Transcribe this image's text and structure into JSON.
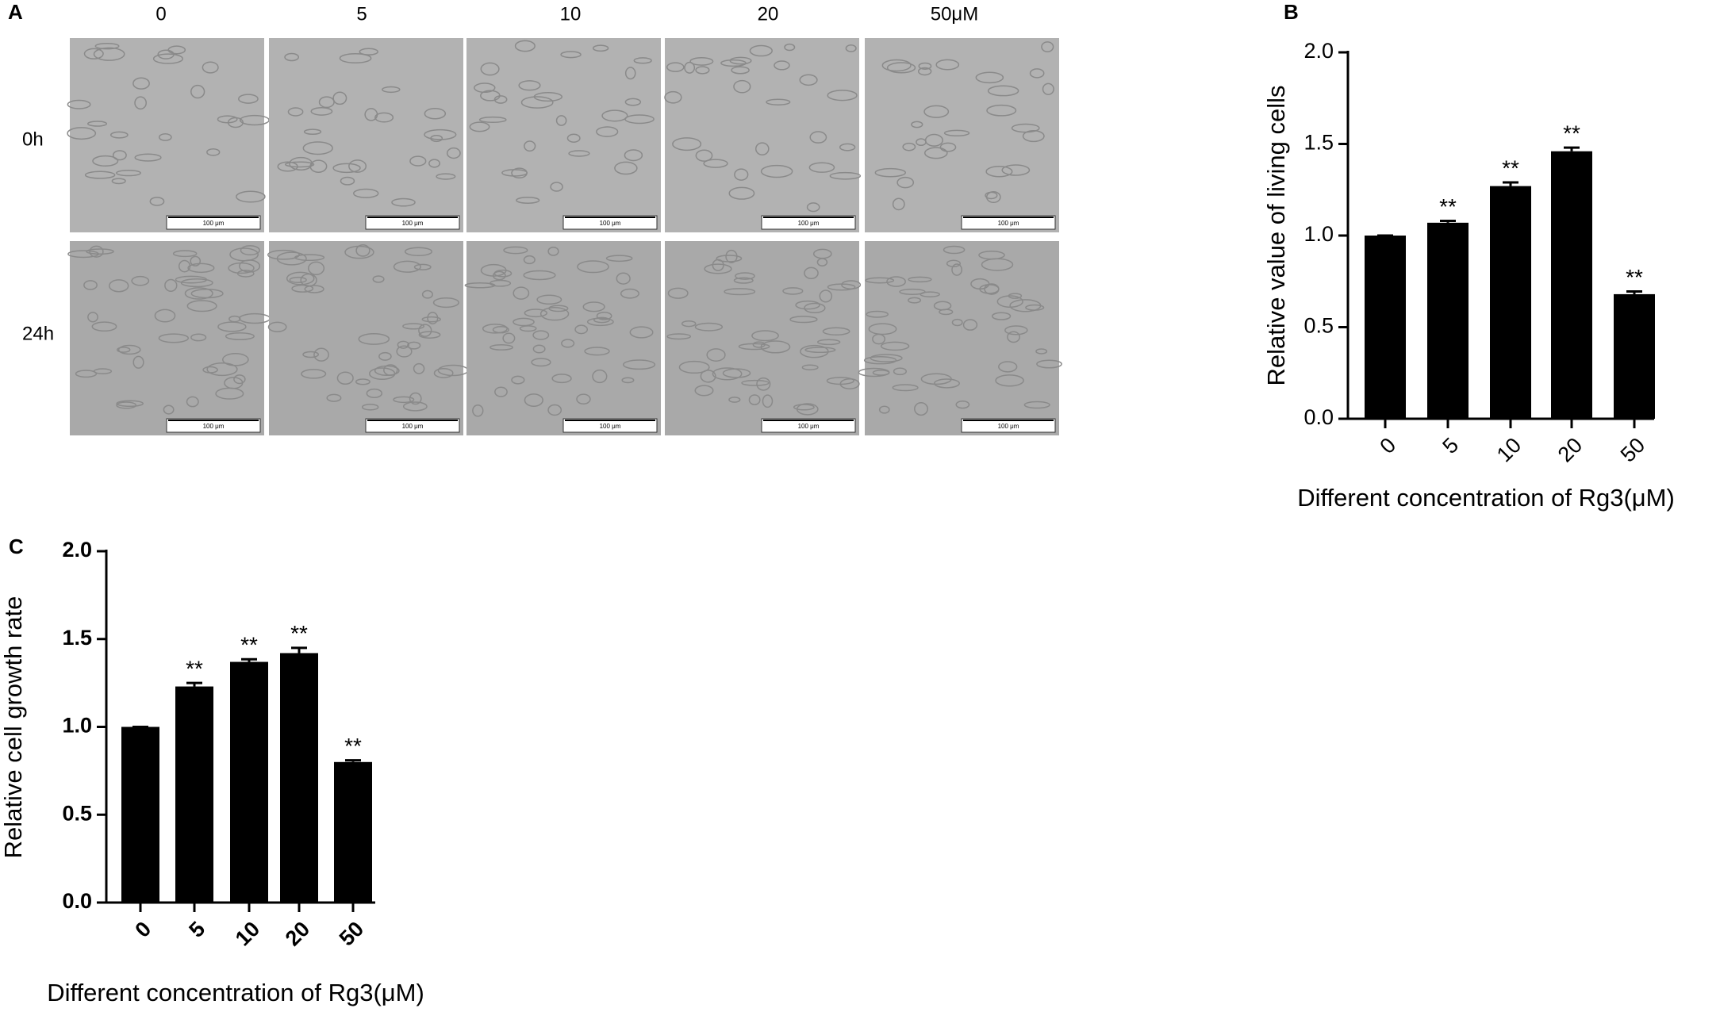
{
  "image_panel": {
    "label": "A",
    "columns": [
      "0",
      "5",
      "10",
      "20",
      "50μM"
    ],
    "rows": [
      "0h",
      "24h"
    ],
    "scale_bar": "100 μm"
  },
  "chart_data": [
    {
      "type": "bar",
      "label": "B",
      "y_label": "Relative value of living cells",
      "x_label": "Different concentration of Rg3(μM)",
      "categories": [
        "0",
        "5",
        "10",
        "20",
        "50"
      ],
      "values": [
        1.0,
        1.07,
        1.27,
        1.46,
        0.68
      ],
      "errors": [
        0,
        0.01,
        0.02,
        0.02,
        0.015
      ],
      "significance": [
        null,
        "**",
        "**",
        "**",
        "**"
      ],
      "color": "#000000",
      "ylim": [
        0,
        2
      ],
      "yticks": [
        {
          "value": 0,
          "label": "0.0"
        },
        {
          "value": 0.5,
          "label": "0.5"
        },
        {
          "value": 1,
          "label": "1.0"
        },
        {
          "value": 1.5,
          "label": "1.5"
        },
        {
          "value": 2,
          "label": "2.0"
        }
      ]
    },
    {
      "type": "bar",
      "label": "C",
      "y_label": "Relative cell growth rate",
      "x_label": "Different concentration of Rg3(μM)",
      "categories": [
        "0",
        "5",
        "10",
        "20",
        "50"
      ],
      "values": [
        1.0,
        1.23,
        1.37,
        1.42,
        0.8
      ],
      "errors": [
        0,
        0.02,
        0.015,
        0.03,
        0.01
      ],
      "significance": [
        null,
        "**",
        "**",
        "**",
        "**"
      ],
      "color": "#000000",
      "ylim": [
        0,
        2
      ],
      "yticks": [
        {
          "value": 0,
          "label": "0.0"
        },
        {
          "value": 0.5,
          "label": "0.5"
        },
        {
          "value": 1,
          "label": "1.0"
        },
        {
          "value": 1.5,
          "label": "1.5"
        },
        {
          "value": 2,
          "label": "2.0"
        }
      ]
    }
  ]
}
